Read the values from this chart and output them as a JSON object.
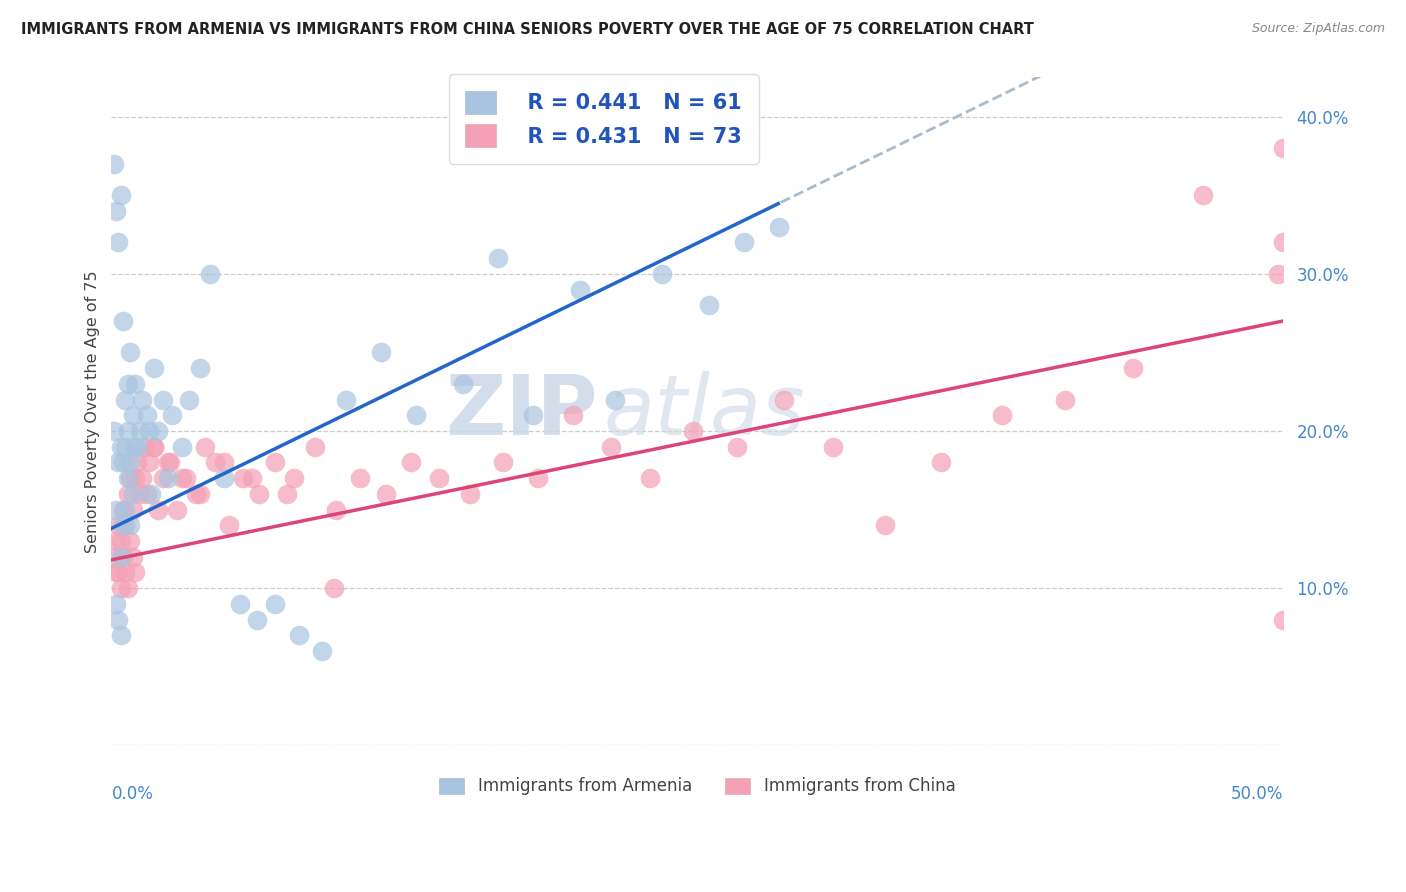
{
  "title": "IMMIGRANTS FROM ARMENIA VS IMMIGRANTS FROM CHINA SENIORS POVERTY OVER THE AGE OF 75 CORRELATION CHART",
  "source": "Source: ZipAtlas.com",
  "ylabel": "Seniors Poverty Over the Age of 75",
  "xmin": 0.0,
  "xmax": 0.5,
  "ymin": 0.0,
  "ymax": 0.425,
  "yticks": [
    0.0,
    0.1,
    0.2,
    0.3,
    0.4
  ],
  "ytick_labels": [
    "",
    "10.0%",
    "20.0%",
    "30.0%",
    "40.0%"
  ],
  "armenia_R": 0.441,
  "armenia_N": 61,
  "china_R": 0.431,
  "china_N": 73,
  "armenia_color": "#a8c4e0",
  "china_color": "#f4a0b5",
  "armenia_line_color": "#2266cc",
  "china_line_color": "#dd4477",
  "dashed_color": "#aabbcc",
  "watermark_color": "#ddeeff",
  "legend_label_armenia": "Immigrants from Armenia",
  "legend_label_china": "Immigrants from China",
  "arm_line_x0": 0.0,
  "arm_line_y0": 0.138,
  "arm_line_x1": 0.285,
  "arm_line_y1": 0.345,
  "arm_line_solid_end": 0.285,
  "chn_line_x0": 0.0,
  "chn_line_y0": 0.118,
  "chn_line_x1": 0.5,
  "chn_line_y1": 0.27,
  "armenia_x": [
    0.001,
    0.001,
    0.002,
    0.002,
    0.003,
    0.003,
    0.004,
    0.004,
    0.004,
    0.005,
    0.005,
    0.005,
    0.006,
    0.006,
    0.006,
    0.007,
    0.007,
    0.007,
    0.008,
    0.008,
    0.008,
    0.009,
    0.009,
    0.01,
    0.01,
    0.011,
    0.012,
    0.013,
    0.015,
    0.016,
    0.017,
    0.018,
    0.02,
    0.022,
    0.024,
    0.026,
    0.03,
    0.033,
    0.038,
    0.042,
    0.048,
    0.055,
    0.062,
    0.07,
    0.08,
    0.09,
    0.1,
    0.115,
    0.13,
    0.15,
    0.165,
    0.18,
    0.2,
    0.215,
    0.235,
    0.255,
    0.27,
    0.285,
    0.002,
    0.003,
    0.004
  ],
  "armenia_y": [
    0.37,
    0.2,
    0.34,
    0.15,
    0.32,
    0.18,
    0.35,
    0.19,
    0.12,
    0.27,
    0.18,
    0.14,
    0.19,
    0.22,
    0.15,
    0.17,
    0.2,
    0.23,
    0.25,
    0.14,
    0.18,
    0.16,
    0.21,
    0.19,
    0.23,
    0.19,
    0.2,
    0.22,
    0.21,
    0.2,
    0.16,
    0.24,
    0.2,
    0.22,
    0.17,
    0.21,
    0.19,
    0.22,
    0.24,
    0.3,
    0.17,
    0.09,
    0.08,
    0.09,
    0.07,
    0.06,
    0.22,
    0.25,
    0.21,
    0.23,
    0.31,
    0.21,
    0.29,
    0.22,
    0.3,
    0.28,
    0.32,
    0.33,
    0.09,
    0.08,
    0.07
  ],
  "china_x": [
    0.001,
    0.002,
    0.002,
    0.003,
    0.003,
    0.004,
    0.004,
    0.005,
    0.005,
    0.006,
    0.006,
    0.007,
    0.007,
    0.008,
    0.008,
    0.009,
    0.009,
    0.01,
    0.01,
    0.011,
    0.012,
    0.013,
    0.014,
    0.015,
    0.016,
    0.018,
    0.02,
    0.022,
    0.025,
    0.028,
    0.032,
    0.036,
    0.04,
    0.044,
    0.05,
    0.056,
    0.063,
    0.07,
    0.078,
    0.087,
    0.096,
    0.106,
    0.117,
    0.128,
    0.14,
    0.153,
    0.167,
    0.182,
    0.197,
    0.213,
    0.23,
    0.248,
    0.267,
    0.287,
    0.308,
    0.33,
    0.354,
    0.38,
    0.407,
    0.436,
    0.466,
    0.498,
    0.5,
    0.5,
    0.5,
    0.018,
    0.024,
    0.03,
    0.038,
    0.048,
    0.06,
    0.075,
    0.095
  ],
  "china_y": [
    0.12,
    0.11,
    0.13,
    0.11,
    0.14,
    0.1,
    0.13,
    0.12,
    0.15,
    0.11,
    0.14,
    0.1,
    0.16,
    0.13,
    0.17,
    0.15,
    0.12,
    0.11,
    0.17,
    0.18,
    0.16,
    0.17,
    0.19,
    0.16,
    0.18,
    0.19,
    0.15,
    0.17,
    0.18,
    0.15,
    0.17,
    0.16,
    0.19,
    0.18,
    0.14,
    0.17,
    0.16,
    0.18,
    0.17,
    0.19,
    0.15,
    0.17,
    0.16,
    0.18,
    0.17,
    0.16,
    0.18,
    0.17,
    0.21,
    0.19,
    0.17,
    0.2,
    0.19,
    0.22,
    0.19,
    0.14,
    0.18,
    0.21,
    0.22,
    0.24,
    0.35,
    0.3,
    0.32,
    0.08,
    0.38,
    0.19,
    0.18,
    0.17,
    0.16,
    0.18,
    0.17,
    0.16,
    0.1
  ]
}
